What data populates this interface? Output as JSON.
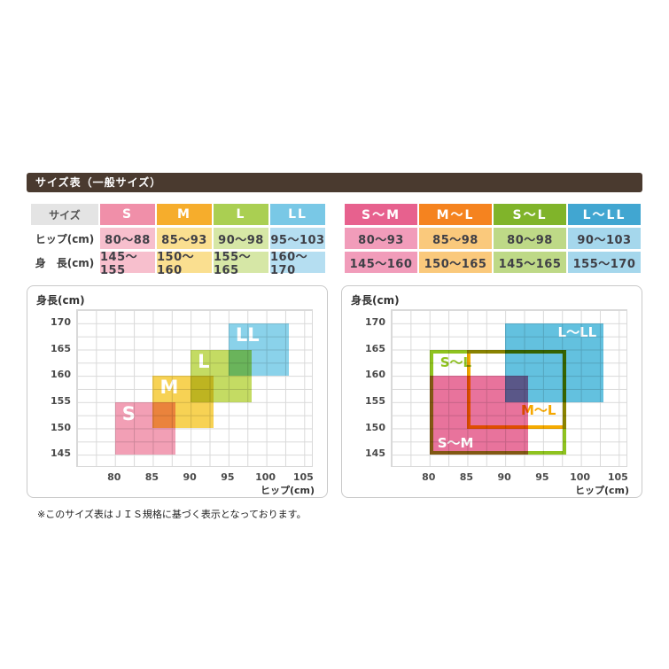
{
  "header": {
    "title": "サイズ表（一般サイズ）"
  },
  "left_table": {
    "corner_label": "サイズ",
    "row_labels": [
      "ヒップ(cm)",
      "身　長(cm)"
    ],
    "columns": [
      {
        "label": "S",
        "header_color": "#f08fa9",
        "cell_color": "#f7bfcd",
        "rows": [
          "80〜88",
          "145〜155"
        ]
      },
      {
        "label": "M",
        "header_color": "#f6ad2c",
        "cell_color": "#fadf90",
        "rows": [
          "85〜93",
          "150〜160"
        ]
      },
      {
        "label": "L",
        "header_color": "#aacf52",
        "cell_color": "#d6e7a6",
        "rows": [
          "90〜98",
          "155〜165"
        ]
      },
      {
        "label": "LL",
        "header_color": "#79c8e6",
        "cell_color": "#b5def1",
        "rows": [
          "95〜103",
          "160〜170"
        ]
      }
    ]
  },
  "right_table": {
    "columns": [
      {
        "label": "S〜M",
        "header_color": "#e7618e",
        "cell_color": "#f19cba",
        "rows": [
          "80〜93",
          "145〜160"
        ]
      },
      {
        "label": "M〜L",
        "header_color": "#f5831f",
        "cell_color": "#fac97c",
        "rows": [
          "85〜98",
          "150〜165"
        ]
      },
      {
        "label": "S〜L",
        "header_color": "#80b42a",
        "cell_color": "#bed987",
        "rows": [
          "80〜98",
          "145〜165"
        ]
      },
      {
        "label": "L〜LL",
        "header_color": "#41a6d1",
        "cell_color": "#a5d7ec",
        "rows": [
          "90〜103",
          "155〜170"
        ]
      }
    ]
  },
  "note": "※このサイズ表はＪＩＳ規格に基づく表示となっております。",
  "chart_data": [
    {
      "type": "area",
      "title": "一般サイズ範囲図",
      "xlabel": "ヒップ(cm)",
      "ylabel": "身長(cm)",
      "x_ticks": [
        80,
        85,
        90,
        95,
        100,
        105
      ],
      "y_ticks": [
        145,
        150,
        155,
        160,
        165,
        170
      ],
      "xlim": [
        75,
        106.25
      ],
      "ylim": [
        142.5,
        172.5
      ],
      "grid": true,
      "legend": "none",
      "boxes": [
        {
          "label": "S",
          "x": [
            80,
            88
          ],
          "y": [
            145,
            155
          ],
          "fill": "#f29fb5",
          "label_color": "#ffffff",
          "label_pos": "top-left"
        },
        {
          "label": "M",
          "x": [
            85,
            93
          ],
          "y": [
            150,
            160
          ],
          "fill": "#f7d254",
          "label_color": "#ffffff",
          "label_pos": "top-left"
        },
        {
          "label": "L",
          "x": [
            90,
            98
          ],
          "y": [
            155,
            165
          ],
          "fill": "#c4db63",
          "label_color": "#ffffff",
          "label_pos": "top-left"
        },
        {
          "label": "LL",
          "x": [
            95,
            103
          ],
          "y": [
            160,
            170
          ],
          "fill": "#8ad2ea",
          "label_color": "#ffffff",
          "label_pos": "top-left"
        }
      ]
    },
    {
      "type": "area",
      "title": "兼用サイズ範囲図",
      "xlabel": "ヒップ(cm)",
      "ylabel": "身長(cm)",
      "x_ticks": [
        80,
        85,
        90,
        95,
        100,
        105
      ],
      "y_ticks": [
        145,
        150,
        155,
        160,
        165,
        170
      ],
      "xlim": [
        75,
        106.25
      ],
      "ylim": [
        142.5,
        172.5
      ],
      "grid": true,
      "legend": "none",
      "boxes": [
        {
          "label": "S〜M",
          "x": [
            80,
            93
          ],
          "y": [
            145,
            160
          ],
          "fill": "#e8739c",
          "label_color": "#ffffff",
          "label_pos": "bottom-left"
        },
        {
          "label": "L〜LL",
          "x": [
            90,
            103
          ],
          "y": [
            155,
            170
          ],
          "fill": "#63c1df",
          "label_color": "#ffffff",
          "label_pos": "top-right"
        },
        {
          "label": "S〜L",
          "x": [
            80,
            98
          ],
          "y": [
            145,
            165
          ],
          "stroke": "#8fc31f",
          "label_color": "#8fc31f",
          "label_pos": "top-left"
        },
        {
          "label": "M〜L",
          "x": [
            85,
            98
          ],
          "y": [
            150,
            165
          ],
          "stroke": "#f6ab00",
          "label_color": "#f6a800",
          "label_pos": "right-lower"
        }
      ]
    }
  ]
}
